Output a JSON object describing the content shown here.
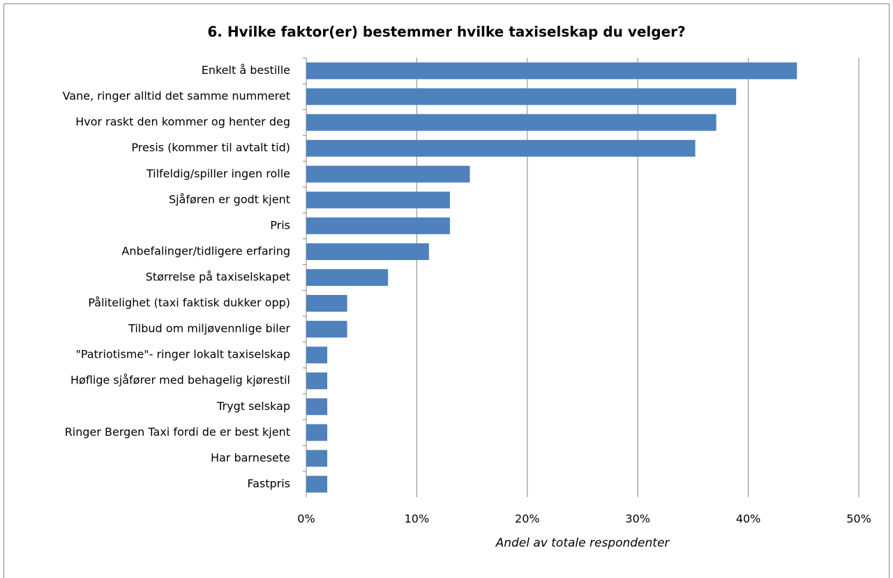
{
  "chart_data": {
    "type": "bar",
    "orientation": "horizontal",
    "title": "6. Hvilke faktor(er) bestemmer hvilke taxiselskap du velger?",
    "x_label": "Andel av totale respondenter",
    "categories": [
      "Enkelt å bestille",
      "Vane, ringer alltid det samme nummeret",
      "Hvor raskt den kommer og henter deg",
      "Presis (kommer til avtalt tid)",
      "Tilfeldig/spiller ingen rolle",
      "Sjåføren er godt kjent",
      "Pris",
      "Anbefalinger/tidligere erfaring",
      "Størrelse på taxiselskapet",
      "Pålitelighet (taxi faktisk dukker opp)",
      "Tilbud om miljøvennlige biler",
      "\"Patriotisme\"- ringer lokalt taxiselskap",
      "Høflige sjåfører med behagelig kjørestil",
      "Trygt selskap",
      "Ringer Bergen Taxi fordi de er best kjent",
      "Har barnesete",
      "Fastpris"
    ],
    "values": [
      44.4,
      38.9,
      37.1,
      35.2,
      14.8,
      13.0,
      13.0,
      11.1,
      7.4,
      3.7,
      3.7,
      1.9,
      1.9,
      1.9,
      1.9,
      1.9,
      1.9
    ],
    "color": "#4f81bd",
    "xlim": [
      0,
      50
    ],
    "xticks": [
      {
        "value": 0,
        "label": "0%"
      },
      {
        "value": 10,
        "label": "10%"
      },
      {
        "value": 20,
        "label": "20%"
      },
      {
        "value": 30,
        "label": "30%"
      },
      {
        "value": 40,
        "label": "40%"
      },
      {
        "value": 50,
        "label": "50%"
      }
    ],
    "grid": true
  }
}
